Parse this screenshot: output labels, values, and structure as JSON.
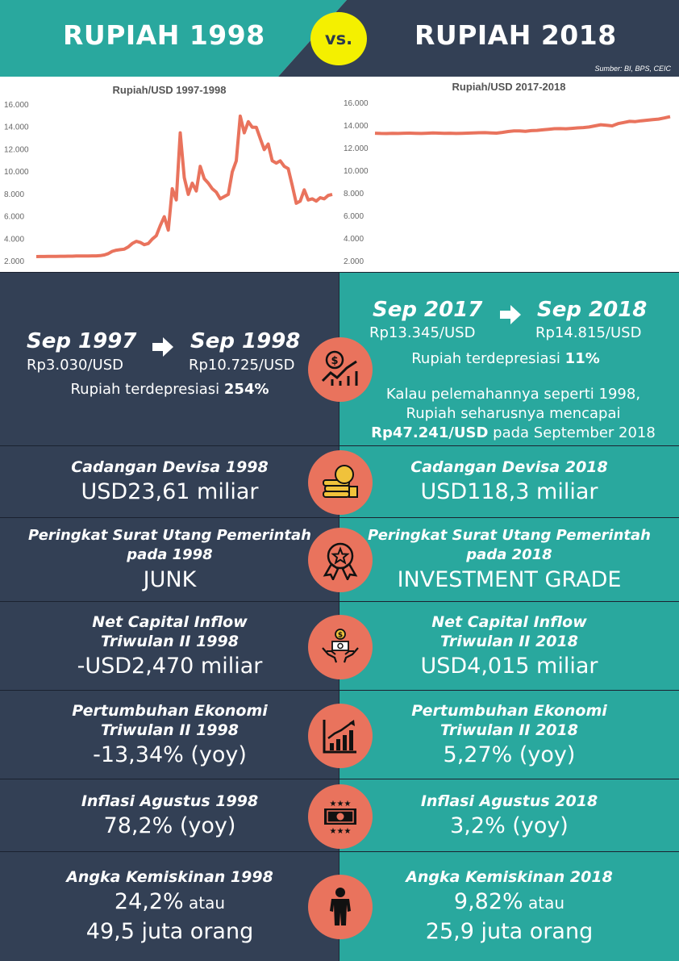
{
  "header": {
    "title_left": "RUPIAH 1998",
    "vs": "vs.",
    "title_right": "RUPIAH 2018",
    "source": "Sumber: BI, BPS, CEIC",
    "colors": {
      "left_bg": "#29a89e",
      "right_bg": "#334055",
      "badge": "#f4f000"
    }
  },
  "chart_data": [
    {
      "type": "line",
      "title": "Rupiah/USD 1997-1998",
      "xlabel": "",
      "ylabel": "",
      "ylim": [
        2000,
        16000
      ],
      "yticks": [
        "16.000",
        "14.000",
        "12.000",
        "10.000",
        "8.000",
        "6.000",
        "4.000",
        "2.000"
      ],
      "grid": false,
      "series_color": "#e9735d",
      "values": [
        2430,
        2440,
        2440,
        2450,
        2450,
        2450,
        2460,
        2460,
        2470,
        2470,
        2480,
        2480,
        2490,
        2490,
        2500,
        2500,
        2520,
        2580,
        2700,
        2900,
        3000,
        3050,
        3100,
        3300,
        3600,
        3800,
        3700,
        3500,
        3600,
        4000,
        4300,
        5200,
        6000,
        4800,
        8500,
        7500,
        13500,
        9500,
        8000,
        9000,
        8300,
        10500,
        9400,
        9000,
        8500,
        8200,
        7600,
        7800,
        8000,
        10000,
        11000,
        15000,
        13500,
        14500,
        14000,
        14000,
        13000,
        12000,
        12500,
        11000,
        10800,
        11000,
        10500,
        10300,
        8800,
        7200,
        7400,
        8400,
        7500,
        7600,
        7400,
        7700,
        7600,
        7900,
        8000
      ]
    },
    {
      "type": "line",
      "title": "Rupiah/USD 2017-2018",
      "xlabel": "",
      "ylabel": "",
      "ylim": [
        2000,
        16000
      ],
      "yticks": [
        "16.000",
        "14.000",
        "12.000",
        "10.000",
        "8.000",
        "6.000",
        "4.000",
        "2.000"
      ],
      "grid": false,
      "series_color": "#e9735d",
      "values": [
        13350,
        13330,
        13320,
        13340,
        13330,
        13350,
        13360,
        13340,
        13330,
        13350,
        13380,
        13360,
        13340,
        13350,
        13330,
        13340,
        13360,
        13380,
        13390,
        13400,
        13380,
        13360,
        13420,
        13500,
        13550,
        13560,
        13520,
        13580,
        13600,
        13650,
        13700,
        13750,
        13760,
        13740,
        13780,
        13820,
        13850,
        13900,
        14000,
        14100,
        14050,
        14000,
        14200,
        14300,
        14400,
        14380,
        14450,
        14500,
        14550,
        14600,
        14700,
        14815
      ]
    }
  ],
  "row_depreciation": {
    "left": {
      "from_date": "Sep 1997",
      "from_rate": "Rp3.030/USD",
      "to_date": "Sep 1998",
      "to_rate": "Rp10.725/USD",
      "text_prefix": "Rupiah terdepresiasi ",
      "text_value": "254%"
    },
    "right": {
      "from_date": "Sep 2017",
      "from_rate": "Rp13.345/USD",
      "to_date": "Sep 2018",
      "to_rate": "Rp14.815/USD",
      "text_prefix": "Rupiah terdepresiasi ",
      "text_value": "11%",
      "note_line1": "Kalau pelemahannya seperti 1998,",
      "note_line2": "Rupiah seharusnya mencapai",
      "note_bold": "Rp47.241/USD",
      "note_suffix": " pada September 2018"
    },
    "icon": "money-chart-icon"
  },
  "rows": [
    {
      "icon": "coins-stack-icon",
      "left_label": "Cadangan Devisa 1998",
      "left_value": "USD23,61 miliar",
      "right_label": "Cadangan Devisa 2018",
      "right_value": "USD118,3 miliar"
    },
    {
      "icon": "award-ribbon-icon",
      "left_label_1": "Peringkat Surat Utang Pemerintah",
      "left_label_2": "pada 1998",
      "left_value": "JUNK",
      "right_label_1": "Peringkat Surat Utang Pemerintah",
      "right_label_2": "pada 2018",
      "right_value": "INVESTMENT GRADE"
    },
    {
      "icon": "hands-money-icon",
      "left_label_1": "Net Capital Inflow",
      "left_label_2": "Triwulan II 1998",
      "left_value": "-USD2,470 miliar",
      "right_label_1": "Net Capital Inflow",
      "right_label_2": "Triwulan II 2018",
      "right_value": "USD4,015 miliar"
    },
    {
      "icon": "growth-chart-icon",
      "left_label_1": "Pertumbuhan Ekonomi",
      "left_label_2": "Triwulan II 1998",
      "left_value": "-13,34% (yoy)",
      "right_label_1": "Pertumbuhan Ekonomi",
      "right_label_2": "Triwulan II 2018",
      "right_value": "5,27% (yoy)"
    },
    {
      "icon": "banknote-stars-icon",
      "left_label": "Inflasi Agustus 1998",
      "left_value": "78,2% (yoy)",
      "right_label": "Inflasi Agustus 2018",
      "right_value": "3,2% (yoy)"
    },
    {
      "icon": "person-icon",
      "left_label": "Angka Kemiskinan 1998",
      "left_value_1": "24,2%",
      "left_value_1_suffix": " atau",
      "left_value_2": "49,5 juta orang",
      "right_label": "Angka Kemiskinan 2018",
      "right_value_1": "9,82%",
      "right_value_1_suffix": " atau",
      "right_value_2": "25,9 juta orang"
    }
  ]
}
